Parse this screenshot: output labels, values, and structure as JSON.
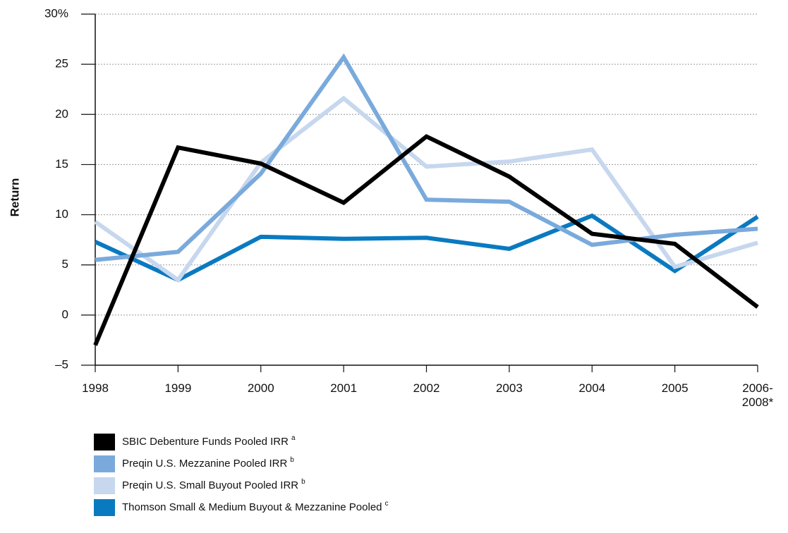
{
  "chart_data": {
    "type": "line",
    "y_label": "Return",
    "categories": [
      "1998",
      "1999",
      "2000",
      "2001",
      "2002",
      "2003",
      "2004",
      "2005",
      "2006-\n2008*"
    ],
    "ylim": [
      -5,
      30
    ],
    "yticks": [
      -5,
      0,
      5,
      10,
      15,
      20,
      25,
      {
        "value": 30,
        "label": "30%"
      }
    ],
    "ytick_first_label": "–5",
    "grid": true,
    "series": [
      {
        "name": "SBIC Debenture Funds Pooled IRR",
        "footnote": "a",
        "color": "#000000",
        "values": [
          -3.0,
          16.7,
          15.1,
          11.2,
          17.8,
          13.8,
          8.1,
          7.1,
          0.8
        ]
      },
      {
        "name": "Preqin U.S. Mezzanine Pooled IRR",
        "footnote": "b",
        "color": "#7aaadc",
        "values": [
          5.5,
          6.3,
          14.1,
          25.7,
          11.5,
          11.3,
          7.0,
          8.0,
          8.6
        ]
      },
      {
        "name": "Preqin U.S. Small Buyout Pooled IRR",
        "footnote": "b",
        "color": "#c6d7ee",
        "values": [
          9.3,
          3.5,
          15.2,
          21.6,
          14.8,
          15.3,
          16.5,
          4.8,
          7.2
        ]
      },
      {
        "name": "Thomson Small & Medium Buyout & Mezzanine Pooled",
        "footnote": "c",
        "color": "#0a7ac0",
        "values": [
          7.3,
          3.5,
          7.8,
          7.6,
          7.7,
          6.6,
          9.9,
          4.4,
          9.8
        ]
      }
    ]
  }
}
